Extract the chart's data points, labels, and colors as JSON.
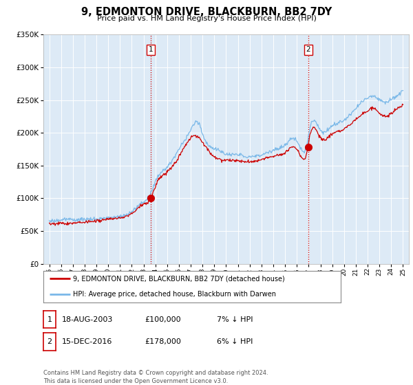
{
  "title": "9, EDMONTON DRIVE, BLACKBURN, BB2 7DY",
  "subtitle": "Price paid vs. HM Land Registry's House Price Index (HPI)",
  "ylim": [
    0,
    350000
  ],
  "xlim_start": 1994.5,
  "xlim_end": 2025.5,
  "sale1_date": 2003.63,
  "sale1_price": 100000,
  "sale2_date": 2016.96,
  "sale2_price": 178000,
  "hpi_color": "#7ab8e8",
  "price_color": "#cc0000",
  "vline_color": "#cc0000",
  "bg_color": "#ddeaf6",
  "legend1": "9, EDMONTON DRIVE, BLACKBURN, BB2 7DY (detached house)",
  "legend2": "HPI: Average price, detached house, Blackburn with Darwen",
  "table_row1": [
    "1",
    "18-AUG-2003",
    "£100,000",
    "7% ↓ HPI"
  ],
  "table_row2": [
    "2",
    "15-DEC-2016",
    "£178,000",
    "6% ↓ HPI"
  ],
  "footer": "Contains HM Land Registry data © Crown copyright and database right 2024.\nThis data is licensed under the Open Government Licence v3.0."
}
